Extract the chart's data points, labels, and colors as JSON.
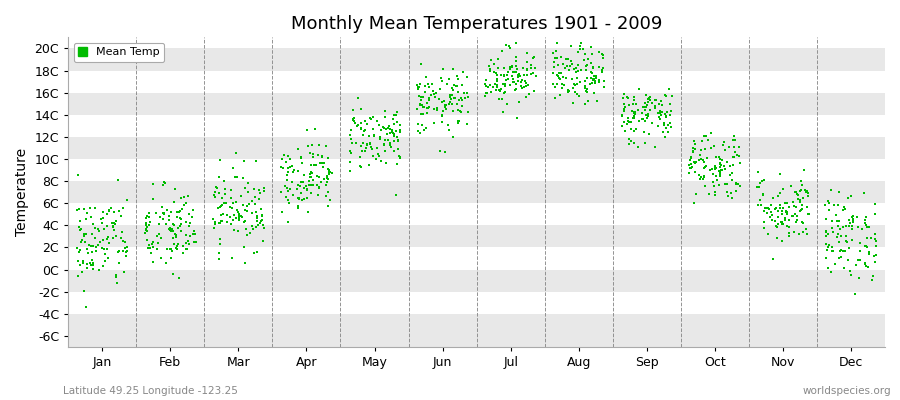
{
  "title": "Monthly Mean Temperatures 1901 - 2009",
  "ylabel": "Temperature",
  "subtitle": "Latitude 49.25 Longitude -123.25",
  "watermark": "worldspecies.org",
  "legend_label": "Mean Temp",
  "dot_color": "#00bb00",
  "fig_bg_color": "#ffffff",
  "plot_bg_color": "#ffffff",
  "stripe_color": "#e8e8e8",
  "ytick_labels": [
    "-6C",
    "-4C",
    "-2C",
    "0C",
    "2C",
    "4C",
    "6C",
    "8C",
    "10C",
    "12C",
    "14C",
    "16C",
    "18C",
    "20C"
  ],
  "ytick_values": [
    -6,
    -4,
    -2,
    0,
    2,
    4,
    6,
    8,
    10,
    12,
    14,
    16,
    18,
    20
  ],
  "ylim": [
    -7,
    21
  ],
  "month_names": [
    "Jan",
    "Feb",
    "Mar",
    "Apr",
    "May",
    "Jun",
    "Jul",
    "Aug",
    "Sep",
    "Oct",
    "Nov",
    "Dec"
  ],
  "month_means": [
    2.5,
    3.5,
    5.5,
    8.5,
    12.0,
    15.0,
    17.5,
    17.5,
    14.0,
    9.5,
    5.5,
    3.0
  ],
  "month_stds": [
    2.2,
    2.0,
    1.8,
    1.6,
    1.5,
    1.5,
    1.3,
    1.3,
    1.3,
    1.6,
    1.6,
    2.0
  ],
  "num_years": 109,
  "seed": 42
}
